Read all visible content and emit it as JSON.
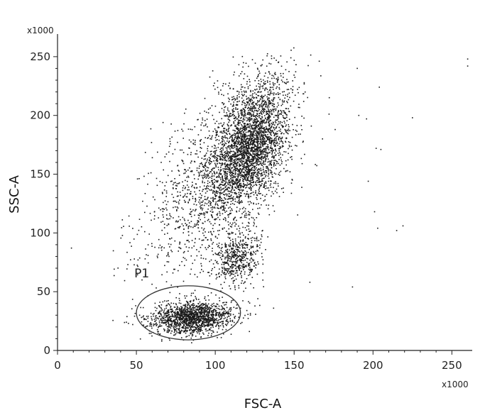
{
  "chart_data": {
    "type": "scatter",
    "title": "",
    "xlabel": "FSC-A",
    "ylabel": "SSC-A",
    "x_multiplier": "x1000",
    "y_multiplier": "x1000",
    "xlim": [
      0,
      262
    ],
    "ylim": [
      0,
      262
    ],
    "x_ticks": [
      "0",
      "50",
      "100",
      "150",
      "200",
      "250"
    ],
    "y_ticks": [
      "0",
      "50",
      "100",
      "150",
      "200",
      "250"
    ],
    "x_tick_values": [
      0,
      50,
      100,
      150,
      200,
      250
    ],
    "y_tick_values": [
      0,
      50,
      100,
      150,
      200,
      250
    ],
    "grid": false,
    "point_color": "#1a1a1a",
    "gate": {
      "name": "P1",
      "shape": "ellipse",
      "center": [
        83,
        32
      ],
      "radii": [
        33,
        23
      ]
    },
    "populations": [
      {
        "cx": 123,
        "cy": 175,
        "sx": 12,
        "sy": 28,
        "rho": 0.45,
        "n": 2600
      },
      {
        "cx": 100,
        "cy": 145,
        "sx": 22,
        "sy": 42,
        "rho": 0.55,
        "n": 1500
      },
      {
        "cx": 114,
        "cy": 78,
        "sx": 7,
        "sy": 11,
        "rho": 0.2,
        "n": 500
      },
      {
        "cx": 85,
        "cy": 28,
        "sx": 13,
        "sy": 7,
        "rho": 0.1,
        "n": 1500
      }
    ],
    "outliers": [
      [
        190,
        240
      ],
      [
        204,
        224
      ],
      [
        225,
        198
      ],
      [
        260,
        248
      ],
      [
        260,
        242
      ],
      [
        191,
        200
      ],
      [
        202,
        172
      ],
      [
        205,
        171
      ],
      [
        168,
        180
      ],
      [
        197,
        144
      ],
      [
        201,
        118
      ],
      [
        203,
        104
      ],
      [
        215,
        102
      ],
      [
        219,
        106
      ],
      [
        187,
        54
      ],
      [
        160,
        58
      ],
      [
        137,
        36
      ],
      [
        127,
        44
      ],
      [
        120,
        34
      ],
      [
        176,
        188
      ]
    ]
  }
}
